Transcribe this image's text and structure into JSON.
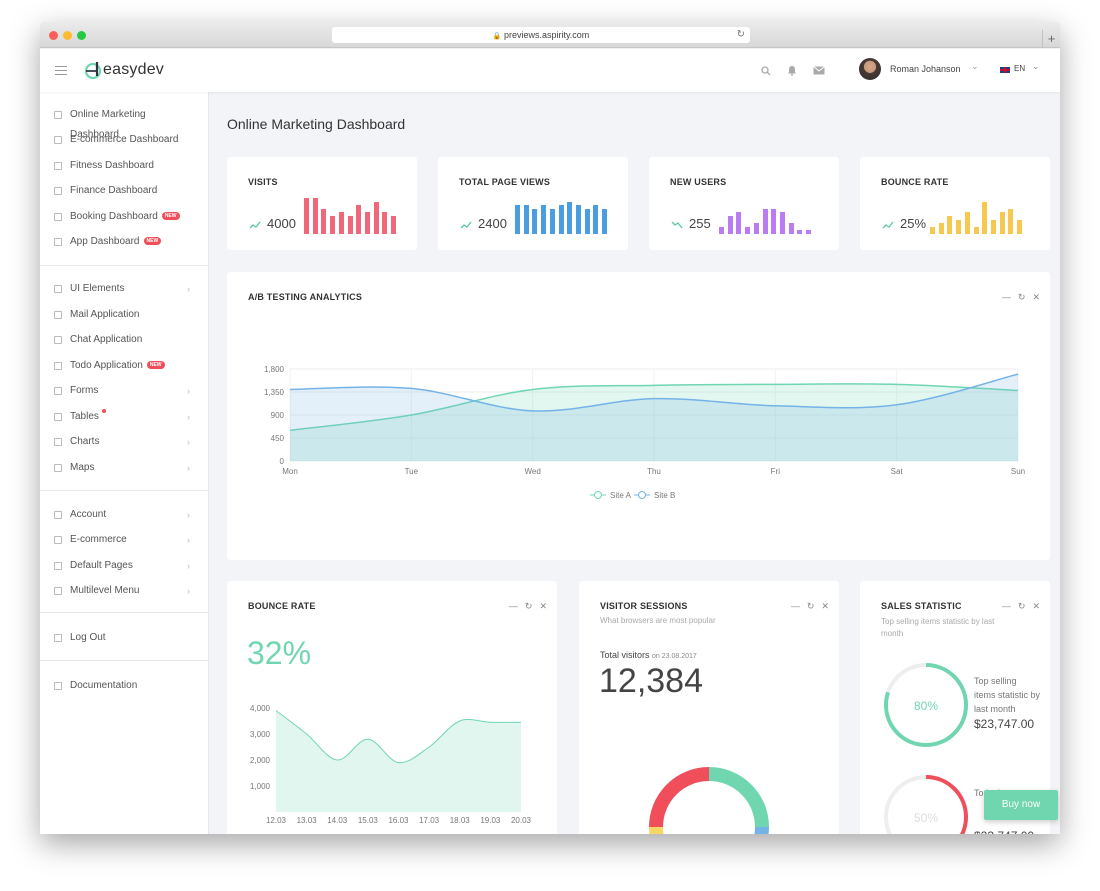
{
  "browser": {
    "url": "previews.aspirity.com",
    "reload_icon": "reload-icon",
    "new_tab": "+"
  },
  "header": {
    "logo_text": "easydev",
    "user_name": "Roman Johanson",
    "language": "EN",
    "icons": [
      "menu-icon",
      "search-icon",
      "bell-icon",
      "mail-icon",
      "flag-uk-icon",
      "chevron-down-icon"
    ]
  },
  "sidebar": {
    "items": [
      {
        "label": "Online Marketing Dashboard",
        "icon": "home-icon"
      },
      {
        "label": "E-commerce Dashboard",
        "icon": "store-icon"
      },
      {
        "label": "Fitness Dashboard",
        "icon": "heart-icon"
      },
      {
        "label": "Finance Dashboard",
        "icon": "rocket-icon"
      },
      {
        "label": "Booking Dashboard",
        "icon": "book-icon",
        "badge": "NEW"
      },
      {
        "label": "App Dashboard",
        "icon": "phone-icon",
        "badge": "NEW"
      },
      {
        "label": "UI Elements",
        "icon": "diamond-icon",
        "chevron": "›"
      },
      {
        "label": "Mail Application",
        "icon": "envelope-icon"
      },
      {
        "label": "Chat Application",
        "icon": "bubble-icon"
      },
      {
        "label": "Todo Application",
        "icon": "list-icon",
        "badge": "NEW"
      },
      {
        "label": "Forms",
        "icon": "file-icon",
        "chevron": "›"
      },
      {
        "label": "Tables",
        "icon": "table-icon",
        "chevron": "›"
      },
      {
        "label": "Charts",
        "icon": "chart-icon",
        "chevron": "›"
      },
      {
        "label": "Maps",
        "icon": "map-icon",
        "chevron": "›"
      },
      {
        "label": "Account",
        "icon": "user-icon",
        "chevron": "›"
      },
      {
        "label": "E-commerce",
        "icon": "cart-icon",
        "chevron": "›"
      },
      {
        "label": "Default Pages",
        "icon": "pages-icon",
        "chevron": "›"
      },
      {
        "label": "Multilevel Menu",
        "icon": "layers-icon",
        "chevron": "›"
      },
      {
        "label": "Log Out",
        "icon": "exit-icon"
      },
      {
        "label": "Documentation",
        "icon": "text-icon"
      }
    ]
  },
  "page_title": "Online Marketing Dashboard",
  "stats": [
    {
      "title": "VISITS",
      "value": "4000",
      "color": "#f0677a",
      "bars": [
        10,
        10,
        7,
        5,
        6,
        5,
        8,
        6,
        9,
        6,
        5
      ]
    },
    {
      "title": "TOTAL PAGE VIEWS",
      "value": "2400",
      "color": "#4a9de0",
      "bars": [
        8,
        8,
        7,
        8,
        7,
        8,
        9,
        8,
        7,
        8,
        7
      ]
    },
    {
      "title": "NEW USERS",
      "value": "255",
      "color": "#b97cf2",
      "bars": [
        2,
        5,
        6,
        2,
        3,
        7,
        7,
        6,
        3,
        1,
        1
      ]
    },
    {
      "title": "BOUNCE RATE",
      "value": "25%",
      "color": "#f6c84f",
      "bars": [
        2,
        3,
        5,
        4,
        6,
        2,
        9,
        4,
        6,
        7,
        4
      ]
    }
  ],
  "stat_trend_icon": "trend-up-icon",
  "ab_testing": {
    "title": "A/B TESTING ANALYTICS",
    "tools": [
      "—",
      "↻",
      "✕"
    ],
    "legend": [
      "Site A",
      "Site B"
    ]
  },
  "bounce_card": {
    "title": "BOUNCE RATE",
    "tools": [
      "—",
      "↻",
      "✕"
    ],
    "value": "32%"
  },
  "visitor_card": {
    "title": "VISITOR SESSIONS",
    "subtitle": "What browsers are most popular",
    "total_label": "Total visitors",
    "date": "on 23.08.2017",
    "total": "12,384",
    "tools": [
      "—",
      "↻",
      "✕"
    ]
  },
  "sales_card": {
    "title": "SALES STATISTIC",
    "subtitle": "Top selling items statistic by last month",
    "tools": [
      "—",
      "↻",
      "✕"
    ],
    "items": [
      {
        "percent": "80%",
        "text": "Top selling items statistic by last month",
        "amount": "$23,747.00",
        "color": "#70d6b0",
        "fraction": 0.8
      },
      {
        "percent": "50%",
        "text": "To ite by",
        "amount": "$23,747.00",
        "color": "#ef4e5a",
        "fraction": 0.5
      }
    ]
  },
  "buy_now": "Buy now",
  "chart_data": [
    {
      "type": "area",
      "title": "A/B TESTING ANALYTICS",
      "categories": [
        "Mon",
        "Tue",
        "Wed",
        "Thu",
        "Fri",
        "Sat",
        "Sun"
      ],
      "y_ticks": [
        "0",
        "450",
        "900",
        "1,350",
        "1,800"
      ],
      "ylim": [
        0,
        1800
      ],
      "series": [
        {
          "name": "Site A",
          "color": "#70d6b0",
          "values": [
            600,
            900,
            1400,
            1480,
            1500,
            1500,
            1380
          ]
        },
        {
          "name": "Site B",
          "color": "#74b3e8",
          "values": [
            1400,
            1420,
            980,
            1220,
            1080,
            1100,
            1700
          ]
        }
      ],
      "legend": "bottom",
      "grid": true
    },
    {
      "type": "area",
      "title": "BOUNCE RATE",
      "categories": [
        "12.03",
        "13.03",
        "14.03",
        "15.03",
        "16.03",
        "17.03",
        "18.03",
        "19.03",
        "20.03"
      ],
      "y_ticks": [
        "1,000",
        "2,000",
        "3,000",
        "4,000"
      ],
      "ylim": [
        0,
        4000
      ],
      "series": [
        {
          "name": "",
          "color": "#70d6b0",
          "values": [
            3900,
            3000,
            2000,
            2800,
            1900,
            2500,
            3500,
            3450,
            3450
          ]
        }
      ]
    },
    {
      "type": "pie",
      "title": "VISITOR SESSIONS",
      "slices": [
        {
          "color": "#70d6b0",
          "value": 25
        },
        {
          "color": "#74b3e8",
          "value": 25
        },
        {
          "color": "#f6d765",
          "value": 25
        },
        {
          "color": "#ef4e5a",
          "value": 25
        }
      ]
    }
  ]
}
